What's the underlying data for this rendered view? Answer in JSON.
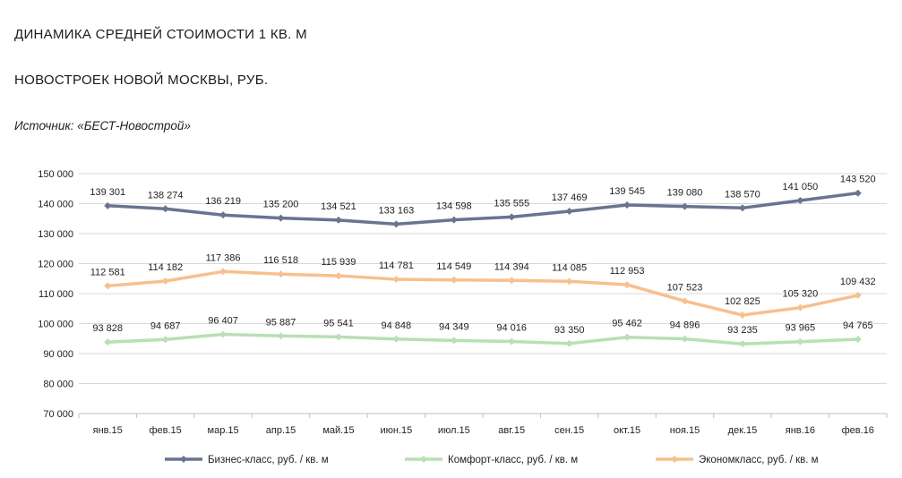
{
  "header": {
    "title_line1": "ДИНАМИКА СРЕДНЕЙ СТОИМОСТИ 1 КВ. М",
    "title_line2": "НОВОСТРОЕК НОВОЙ МОСКВЫ, РУБ.",
    "source": "Источник: «БЕСТ-Новострой»"
  },
  "chart_data": {
    "type": "line",
    "title": "ДИНАМИКА СРЕДНЕЙ СТОИМОСТИ 1 КВ. М НОВОСТРОЕК НОВОЙ МОСКВЫ, РУБ.",
    "xlabel": "",
    "ylabel": "",
    "ylim": [
      70000,
      150000
    ],
    "y_ticks": [
      70000,
      80000,
      90000,
      100000,
      110000,
      120000,
      130000,
      140000,
      150000
    ],
    "y_tick_labels": [
      "70 000",
      "80 000",
      "90 000",
      "100 000",
      "110 000",
      "120 000",
      "130 000",
      "140 000",
      "150 000"
    ],
    "grid": true,
    "legend_position": "bottom",
    "categories": [
      "янв.15",
      "фев.15",
      "мар.15",
      "апр.15",
      "май.15",
      "июн.15",
      "июл.15",
      "авг.15",
      "сен.15",
      "окт.15",
      "ноя.15",
      "дек.15",
      "янв.16",
      "фев.16"
    ],
    "series": [
      {
        "name": "Бизнес-класс, руб. / кв. м",
        "color": "#6a7391",
        "values": [
          139301,
          138274,
          136219,
          135200,
          134521,
          133163,
          134598,
          135555,
          137469,
          139545,
          139080,
          138570,
          141050,
          143520
        ],
        "labels": [
          "139 301",
          "138 274",
          "136 219",
          "135 200",
          "134 521",
          "133 163",
          "134 598",
          "135 555",
          "137 469",
          "139 545",
          "139 080",
          "138 570",
          "141 050",
          "143 520"
        ]
      },
      {
        "name": "Комфорт-класс, руб. / кв. м",
        "color": "#b7e0b3",
        "values": [
          93828,
          94687,
          96407,
          95887,
          95541,
          94848,
          94349,
          94016,
          93350,
          95462,
          94896,
          93235,
          93965,
          94765
        ],
        "labels": [
          "93 828",
          "94 687",
          "96 407",
          "95 887",
          "95 541",
          "94 848",
          "94 349",
          "94 016",
          "93 350",
          "95 462",
          "94 896",
          "93 235",
          "93 965",
          "94 765"
        ]
      },
      {
        "name": "Экономкласс, руб. / кв. м",
        "color": "#f7c08e",
        "values": [
          112581,
          114182,
          117386,
          116518,
          115939,
          114781,
          114549,
          114394,
          114085,
          112953,
          107523,
          102825,
          105320,
          109432
        ],
        "labels": [
          "112 581",
          "114 182",
          "117 386",
          "116 518",
          "115 939",
          "114 781",
          "114 549",
          "114 394",
          "114 085",
          "112 953",
          "107 523",
          "102 825",
          "105 320",
          "109 432"
        ]
      }
    ]
  }
}
